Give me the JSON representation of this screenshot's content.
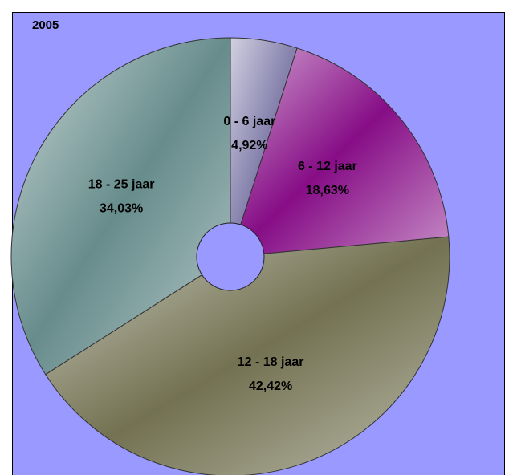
{
  "chart_data": {
    "type": "pie",
    "title": "2005",
    "categories": [
      "0 - 6 jaar",
      "6 - 12 jaar",
      "12 - 18 jaar",
      "18 - 25 jaar"
    ],
    "values": [
      4.92,
      18.63,
      42.42,
      34.03
    ],
    "value_labels": [
      "4,92%",
      "18,63%",
      "42,42%",
      "34,03%"
    ],
    "colors": [
      "#7e7aa8",
      "#800080",
      "#6b6a48",
      "#5f8686"
    ]
  }
}
